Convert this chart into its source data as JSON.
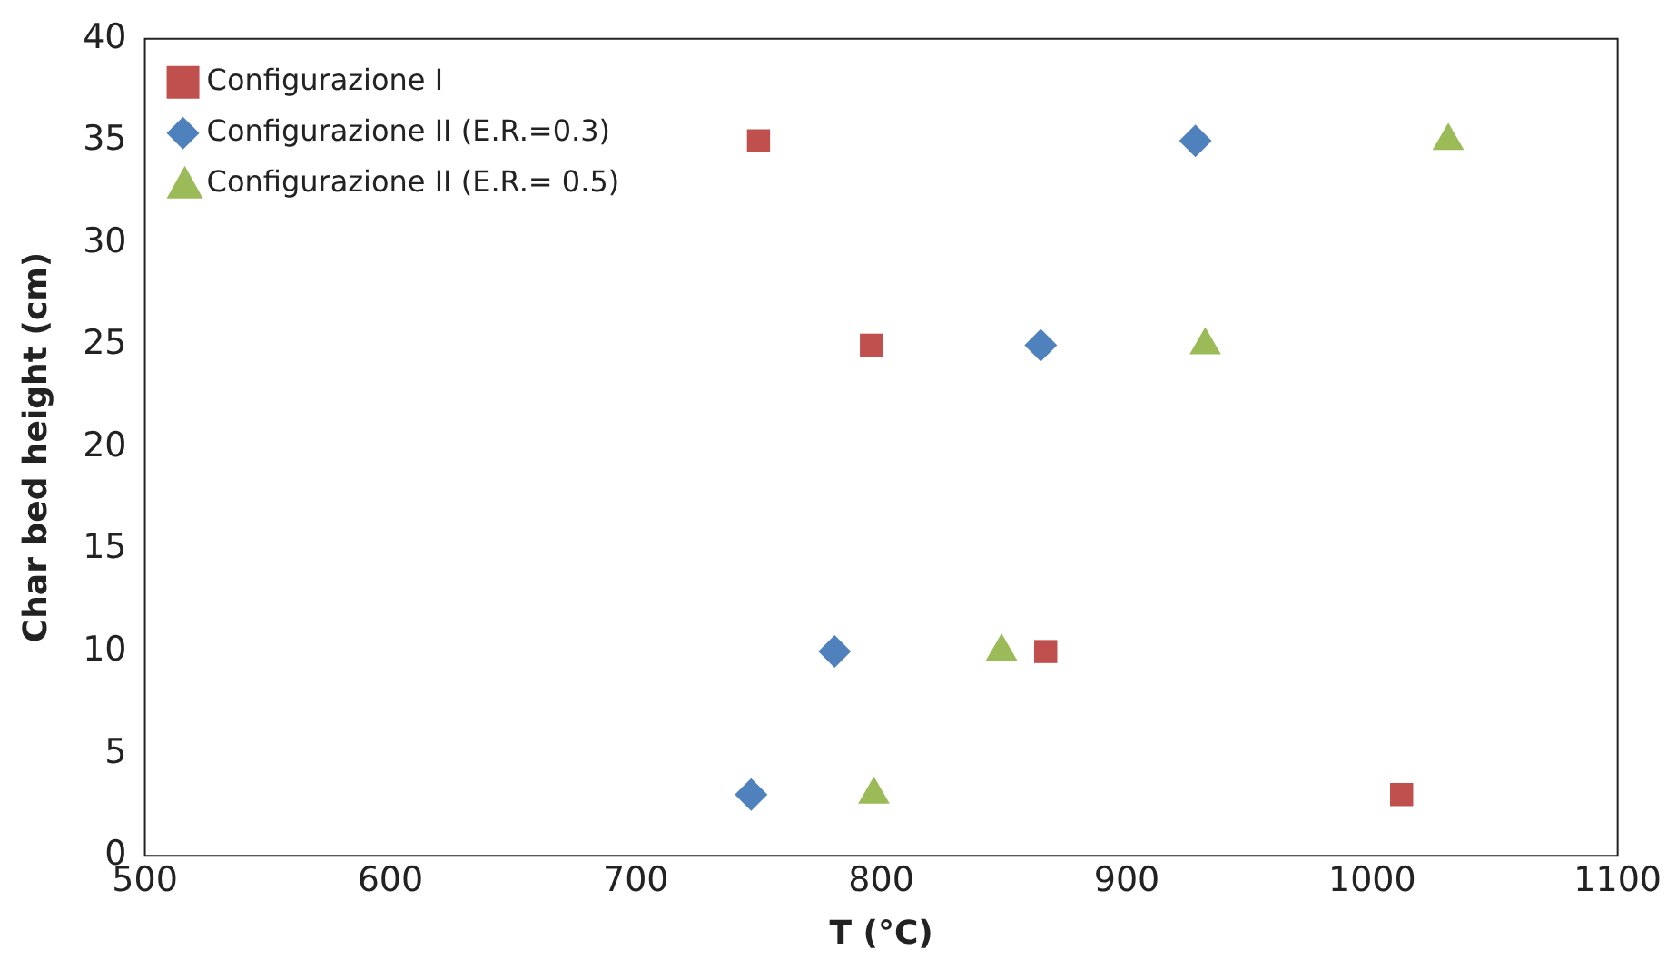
{
  "chart_data": {
    "type": "scatter",
    "xlabel": "T (°C)",
    "ylabel": "Char bed height (cm)",
    "xlim": [
      500,
      1100
    ],
    "xticks": [
      500,
      600,
      700,
      800,
      900,
      1000,
      1100
    ],
    "ylim": [
      0,
      40
    ],
    "yticks": [
      0,
      5,
      10,
      15,
      20,
      25,
      30,
      35,
      40
    ],
    "grid": false,
    "legend": "top left",
    "series": [
      {
        "name": "Configurazione I",
        "color": "#c0504d",
        "marker": "square",
        "x": [
          750,
          796,
          867,
          1012
        ],
        "values": [
          35,
          25,
          10,
          3
        ]
      },
      {
        "name": "Configurazione II (E.R.=0.3)",
        "color": "#4f81bd",
        "marker": "diamond",
        "x": [
          747,
          781,
          865,
          928
        ],
        "values": [
          3,
          10,
          25,
          35
        ]
      },
      {
        "name": "Configurazione II (E.R.= 0.5)",
        "color": "#9bbb59",
        "marker": "triangle",
        "x": [
          797,
          849,
          932,
          1031
        ],
        "values": [
          3,
          10,
          25,
          35
        ]
      }
    ]
  }
}
